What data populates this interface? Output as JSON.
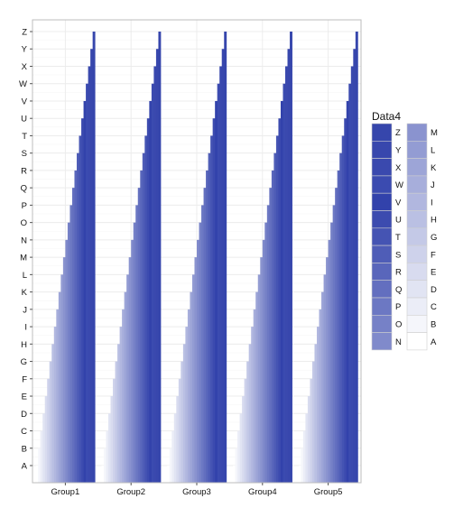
{
  "chart_data": {
    "type": "bar",
    "orientation": "stacked-column-ordinal",
    "grid": true,
    "legend_placement": "right",
    "legend_title": "Data4",
    "legend_columns": 2,
    "categories": [
      "Group1",
      "Group2",
      "Group3",
      "Group4",
      "Group5"
    ],
    "y_levels": [
      "A",
      "B",
      "C",
      "D",
      "E",
      "F",
      "G",
      "H",
      "I",
      "J",
      "K",
      "L",
      "M",
      "N",
      "O",
      "P",
      "Q",
      "R",
      "S",
      "T",
      "U",
      "V",
      "W",
      "X",
      "Y",
      "Z"
    ],
    "series": [
      {
        "level": "A",
        "color": "#FFFFFF"
      },
      {
        "level": "B",
        "color": "#F5F6FB"
      },
      {
        "level": "C",
        "color": "#EBEDF7"
      },
      {
        "level": "D",
        "color": "#E1E4F3"
      },
      {
        "level": "E",
        "color": "#D8DBEF"
      },
      {
        "level": "F",
        "color": "#CED2EB"
      },
      {
        "level": "G",
        "color": "#C4C9E7"
      },
      {
        "level": "H",
        "color": "#BAC0E3"
      },
      {
        "level": "I",
        "color": "#B1B7DF"
      },
      {
        "level": "J",
        "color": "#A7AEDB"
      },
      {
        "level": "K",
        "color": "#9DA5D7"
      },
      {
        "level": "L",
        "color": "#939CD3"
      },
      {
        "level": "M",
        "color": "#8A93CF"
      },
      {
        "level": "N",
        "color": "#808ACB"
      },
      {
        "level": "O",
        "color": "#7681C7"
      },
      {
        "level": "P",
        "color": "#6C78C3"
      },
      {
        "level": "Q",
        "color": "#636FBF"
      },
      {
        "level": "R",
        "color": "#5966BB"
      },
      {
        "level": "S",
        "color": "#4F5DB7"
      },
      {
        "level": "T",
        "color": "#4554B3"
      },
      {
        "level": "U",
        "color": "#3C4BAF"
      },
      {
        "level": "V",
        "color": "#3242AB"
      },
      {
        "level": "W",
        "color": "#3B4BB0"
      },
      {
        "level": "X",
        "color": "#3A49AE"
      },
      {
        "level": "Y",
        "color": "#3847AD"
      },
      {
        "level": "Z",
        "color": "#3646AC"
      }
    ]
  }
}
